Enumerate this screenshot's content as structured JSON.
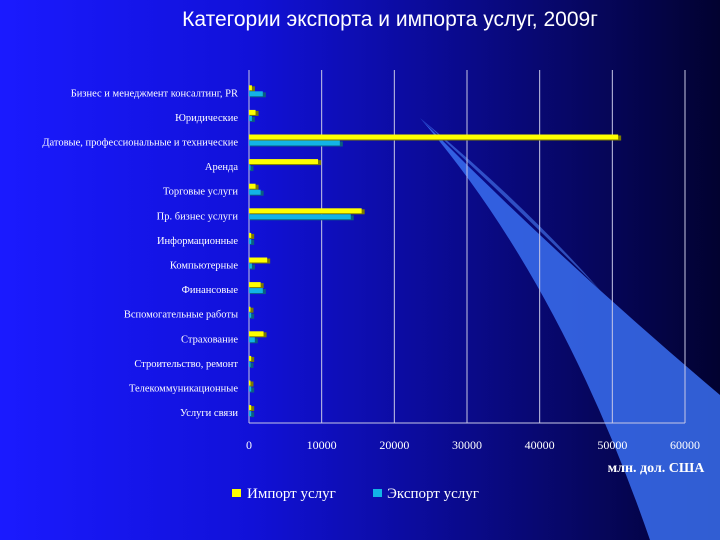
{
  "slide_title": "Категории экспорта и импорта услуг, 2009г",
  "chart_data": {
    "type": "bar",
    "orientation": "horizontal",
    "title": "",
    "xlabel": "млн. дол. США",
    "ylabel": "",
    "xlim": [
      0,
      60000
    ],
    "xticks": [
      0,
      10000,
      20000,
      30000,
      40000,
      50000,
      60000
    ],
    "xtick_labels": [
      "0",
      "10000",
      "20000",
      "30000",
      "40000",
      "50000",
      "60000"
    ],
    "grid": "vertical",
    "legend": "bottom",
    "categories": [
      "Бизнес и менеджмент консалтинг, PR",
      "Юридические",
      "Датовые, профессиональные и технические",
      "Аренда",
      "Торговые услуги",
      "Пр. бизнес услуги",
      "Информационные",
      "Компьютерные",
      "Финансовые",
      "Вспомогательные работы",
      "Страхование",
      "Строительство, ремонт",
      "Телекоммуникационные",
      "Услуги связи"
    ],
    "series": [
      {
        "name": "Импорт услуг",
        "color": "#ffff00",
        "values": [
          400,
          900,
          50800,
          9500,
          900,
          15500,
          300,
          2500,
          1600,
          200,
          2000,
          300,
          200,
          300
        ]
      },
      {
        "name": "Экспорт услуг",
        "color": "#12b4e6",
        "values": [
          1900,
          400,
          12500,
          200,
          1600,
          14000,
          300,
          400,
          1900,
          300,
          800,
          200,
          300,
          300
        ]
      }
    ]
  }
}
